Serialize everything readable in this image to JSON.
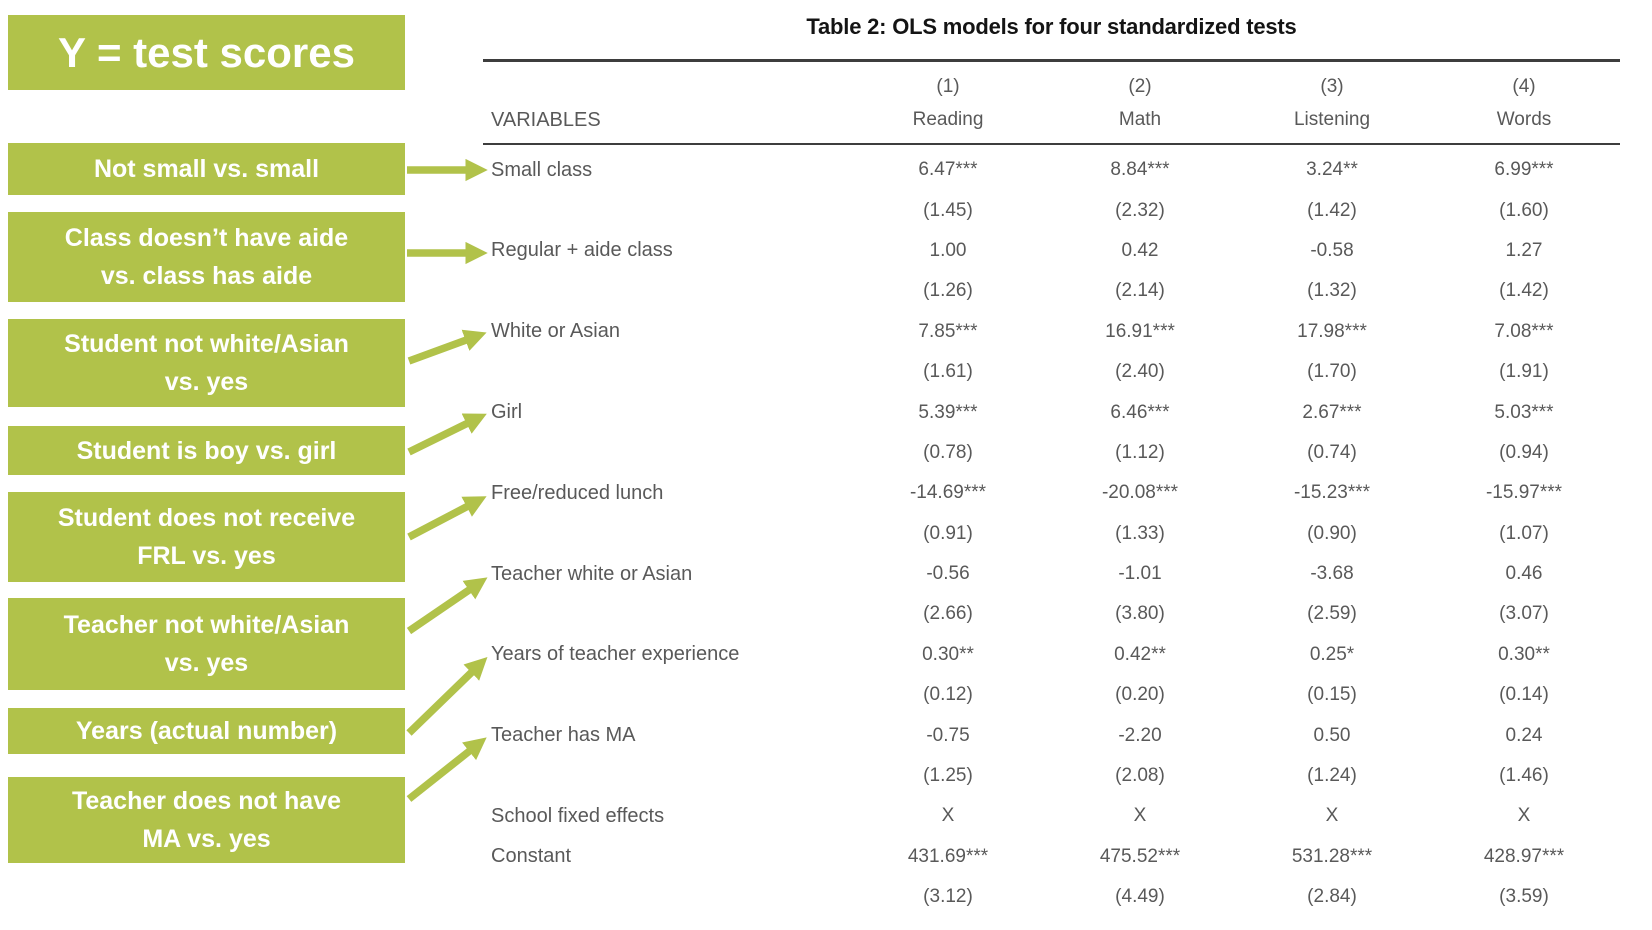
{
  "colors": {
    "accent_green": "#B1C24A",
    "table_text": "#595959",
    "title_text": "#141414"
  },
  "annotations": {
    "y_title": "Y = test scores",
    "boxes": [
      {
        "lines": [
          "Not small vs. small"
        ]
      },
      {
        "lines": [
          "Class doesn’t have aide",
          "vs. class has aide"
        ]
      },
      {
        "lines": [
          "Student not white/Asian",
          "vs. yes"
        ]
      },
      {
        "lines": [
          "Student is boy vs. girl"
        ]
      },
      {
        "lines": [
          "Student does not receive",
          "FRL vs. yes"
        ]
      },
      {
        "lines": [
          "Teacher not white/Asian",
          "vs. yes"
        ]
      },
      {
        "lines": [
          "Years (actual number)"
        ]
      },
      {
        "lines": [
          "Teacher does not have",
          "MA vs. yes"
        ]
      }
    ]
  },
  "table": {
    "title": "Table 2: OLS models for four standardized tests",
    "variables_header": "VARIABLES",
    "model_numbers": [
      "(1)",
      "(2)",
      "(3)",
      "(4)"
    ],
    "column_headers": [
      "Reading",
      "Math",
      "Listening",
      "Words"
    ],
    "rows": [
      {
        "label": "Small class",
        "values": [
          "6.47***",
          "8.84***",
          "3.24**",
          "6.99***"
        ],
        "se": [
          "(1.45)",
          "(2.32)",
          "(1.42)",
          "(1.60)"
        ]
      },
      {
        "label": "Regular + aide class",
        "values": [
          "1.00",
          "0.42",
          "-0.58",
          "1.27"
        ],
        "se": [
          "(1.26)",
          "(2.14)",
          "(1.32)",
          "(1.42)"
        ]
      },
      {
        "label": "White or Asian",
        "values": [
          "7.85***",
          "16.91***",
          "17.98***",
          "7.08***"
        ],
        "se": [
          "(1.61)",
          "(2.40)",
          "(1.70)",
          "(1.91)"
        ]
      },
      {
        "label": "Girl",
        "values": [
          "5.39***",
          "6.46***",
          "2.67***",
          "5.03***"
        ],
        "se": [
          "(0.78)",
          "(1.12)",
          "(0.74)",
          "(0.94)"
        ]
      },
      {
        "label": "Free/reduced lunch",
        "values": [
          "-14.69***",
          "-20.08***",
          "-15.23***",
          "-15.97***"
        ],
        "se": [
          "(0.91)",
          "(1.33)",
          "(0.90)",
          "(1.07)"
        ]
      },
      {
        "label": "Teacher white or Asian",
        "values": [
          "-0.56",
          "-1.01",
          "-3.68",
          "0.46"
        ],
        "se": [
          "(2.66)",
          "(3.80)",
          "(2.59)",
          "(3.07)"
        ]
      },
      {
        "label": "Years of teacher experience",
        "values": [
          "0.30**",
          "0.42**",
          "0.25*",
          "0.30**"
        ],
        "se": [
          "(0.12)",
          "(0.20)",
          "(0.15)",
          "(0.14)"
        ]
      },
      {
        "label": "Teacher has MA",
        "values": [
          "-0.75",
          "-2.20",
          "0.50",
          "0.24"
        ],
        "se": [
          "(1.25)",
          "(2.08)",
          "(1.24)",
          "(1.46)"
        ]
      },
      {
        "label": "School fixed effects",
        "values": [
          "X",
          "X",
          "X",
          "X"
        ],
        "se": null
      },
      {
        "label": "Constant",
        "values": [
          "431.69***",
          "475.52***",
          "531.28***",
          "428.97***"
        ],
        "se": [
          "(3.12)",
          "(4.49)",
          "(2.84)",
          "(3.59)"
        ]
      }
    ]
  }
}
